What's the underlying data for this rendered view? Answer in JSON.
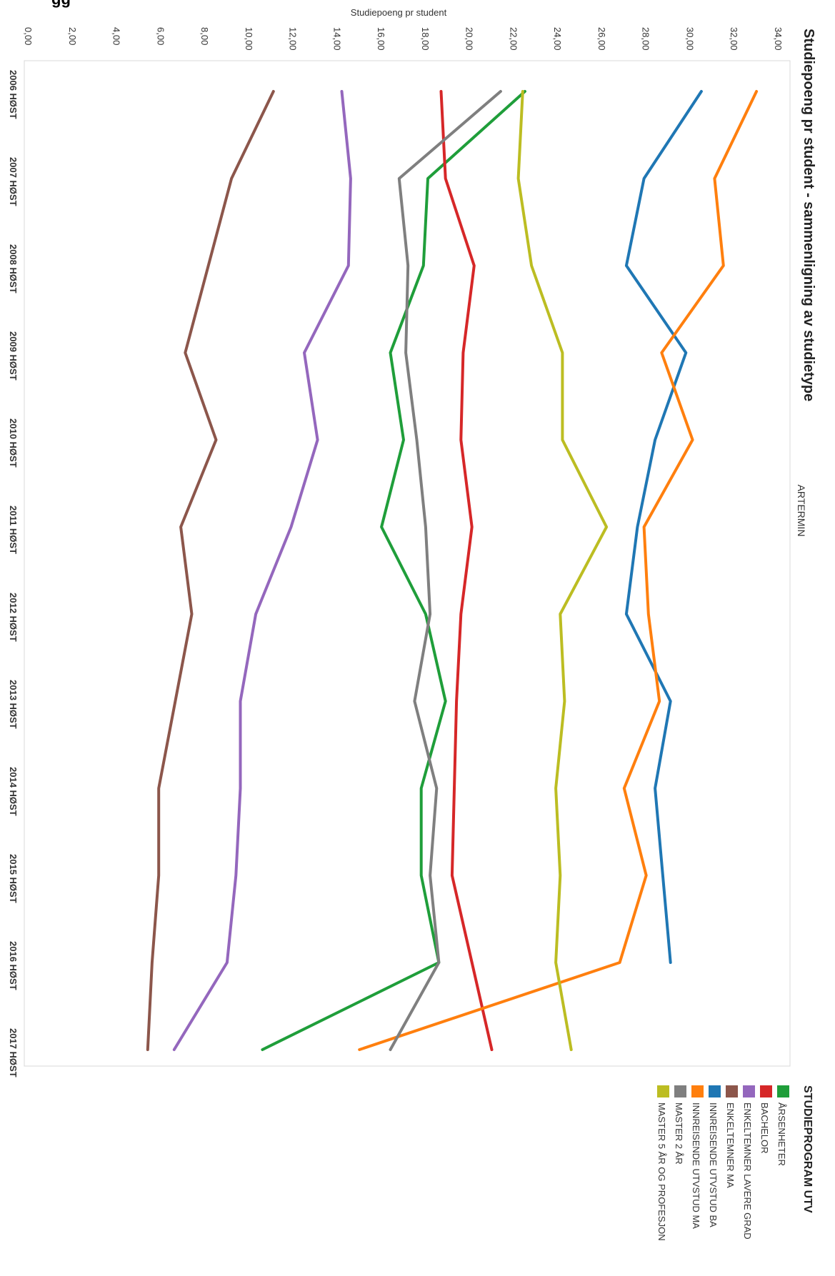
{
  "page_title_fragment": "gg",
  "chart_data": {
    "type": "line",
    "title": "Studiepoeng pr student - sammenligning av studietype",
    "xlabel": "ARTERMIN",
    "ylabel": "Studiepoeng pr student",
    "ylim": [
      0,
      34
    ],
    "yticks": [
      "0,00",
      "2,00",
      "4,00",
      "6,00",
      "8,00",
      "10,00",
      "12,00",
      "14,00",
      "16,00",
      "18,00",
      "20,00",
      "22,00",
      "24,00",
      "26,00",
      "28,00",
      "30,00",
      "32,00",
      "34,00"
    ],
    "categories": [
      "2006 HØST",
      "2007 HØST",
      "2008 HØST",
      "2009 HØST",
      "2010 HØST",
      "2011 HØST",
      "2012 HØST",
      "2013 HØST",
      "2014 HØST",
      "2015 HØST",
      "2016 HØST",
      "2017 HØST"
    ],
    "legend_title": "STUDIEPROGRAM UTV",
    "legend_position": "right",
    "series": [
      {
        "name": "ÅRSENHETER",
        "color": "#1f9e3a",
        "values": [
          22.5,
          18.1,
          17.9,
          16.4,
          17.0,
          16.0,
          18.0,
          18.9,
          17.8,
          17.8,
          18.6,
          10.6
        ]
      },
      {
        "name": "BACHELOR",
        "color": "#d62728",
        "values": [
          18.7,
          18.9,
          20.2,
          19.7,
          19.6,
          20.1,
          19.6,
          19.4,
          19.3,
          19.2,
          null,
          21.0
        ]
      },
      {
        "name": "ENKELTEMNER LAVERE GRAD",
        "color": "#9467bd",
        "values": [
          14.2,
          14.6,
          14.5,
          12.5,
          13.1,
          11.9,
          10.3,
          9.6,
          9.6,
          9.4,
          9.0,
          6.6
        ]
      },
      {
        "name": "ENKELTEMNER MA",
        "color": "#8c564b",
        "values": [
          11.1,
          9.2,
          null,
          7.1,
          8.5,
          6.9,
          7.4,
          null,
          5.9,
          5.9,
          5.6,
          5.4
        ]
      },
      {
        "name": "INNREISENDE UTVSTUD BA",
        "color": "#1f77b4",
        "values": [
          30.5,
          27.9,
          27.1,
          29.8,
          28.4,
          27.6,
          27.1,
          29.1,
          28.4,
          null,
          29.1,
          null
        ]
      },
      {
        "name": "INNREISENDE UTVSTUD MA",
        "color": "#ff7f0e",
        "values": [
          33.0,
          31.1,
          31.5,
          28.7,
          30.1,
          27.9,
          28.1,
          28.6,
          27.0,
          28.0,
          26.8,
          15.0
        ]
      },
      {
        "name": "MASTER 2 ÅR",
        "color": "#7f7f7f",
        "values": [
          21.4,
          16.8,
          17.2,
          17.1,
          17.6,
          18.0,
          18.2,
          17.5,
          18.5,
          18.2,
          18.6,
          16.4
        ]
      },
      {
        "name": "MASTER 5 ÅR OG PROFESJON",
        "color": "#bcbd22",
        "values": [
          22.4,
          22.2,
          22.8,
          24.2,
          24.2,
          26.2,
          24.1,
          24.3,
          23.9,
          24.1,
          23.9,
          24.6
        ]
      }
    ]
  }
}
